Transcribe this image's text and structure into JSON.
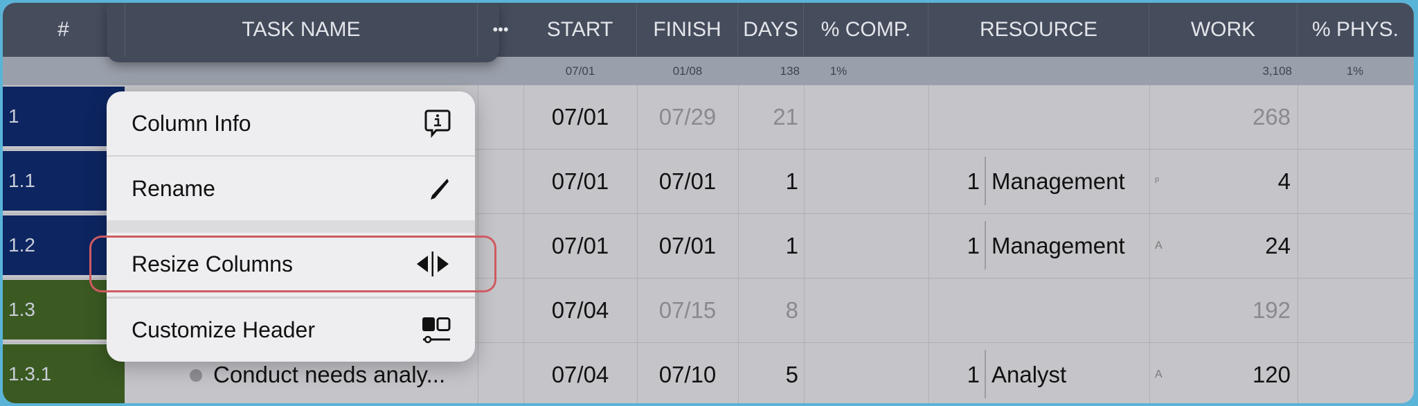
{
  "header": {
    "columns": [
      "#",
      "TASK NAME",
      "•••",
      "START",
      "FINISH",
      "DAYS",
      "% COMP.",
      "RESOURCE",
      "WORK",
      "% PHYS."
    ]
  },
  "summary": {
    "start": "07/01",
    "finish": "01/08",
    "days": "138",
    "comp": "1%",
    "work": "3,108",
    "phys": "1%"
  },
  "rows": [
    {
      "id": "1",
      "color": "#0d2560",
      "task": "",
      "start": "07/01",
      "finish": "07/29",
      "days": "21",
      "units": "",
      "resource": "",
      "marker": "",
      "work": "268",
      "summary": true
    },
    {
      "id": "1.1",
      "color": "#0d2560",
      "task": "",
      "start": "07/01",
      "finish": "07/01",
      "days": "1",
      "units": "1",
      "resource": "Management",
      "marker": "ᵖ",
      "work": "4",
      "summary": false
    },
    {
      "id": "1.2",
      "color": "#0d2560",
      "task": "",
      "start": "07/01",
      "finish": "07/01",
      "days": "1",
      "units": "1",
      "resource": "Management",
      "marker": "A",
      "work": "24",
      "summary": false
    },
    {
      "id": "1.3",
      "color": "#3a5a22",
      "task": "",
      "start": "07/04",
      "finish": "07/15",
      "days": "8",
      "units": "",
      "resource": "",
      "marker": "",
      "work": "192",
      "summary": true
    },
    {
      "id": "1.3.1",
      "color": "#3a5a22",
      "task": "Conduct needs analy...",
      "start": "07/04",
      "finish": "07/10",
      "days": "5",
      "units": "1",
      "resource": "Analyst",
      "marker": "A",
      "work": "120",
      "summary": false
    }
  ],
  "menu": {
    "items": [
      {
        "label": "Column Info",
        "icon": "info-bubble-icon"
      },
      {
        "label": "Rename",
        "icon": "pencil-icon"
      },
      {
        "label": "Resize Columns",
        "icon": "resize-columns-icon",
        "highlighted": true
      },
      {
        "label": "Customize Header",
        "icon": "customize-header-icon"
      }
    ]
  },
  "colors": {
    "header": "#454c5c",
    "subheader": "#9aa0ab",
    "highlight": "#cf5a60",
    "frame": "#5ab4d8"
  }
}
